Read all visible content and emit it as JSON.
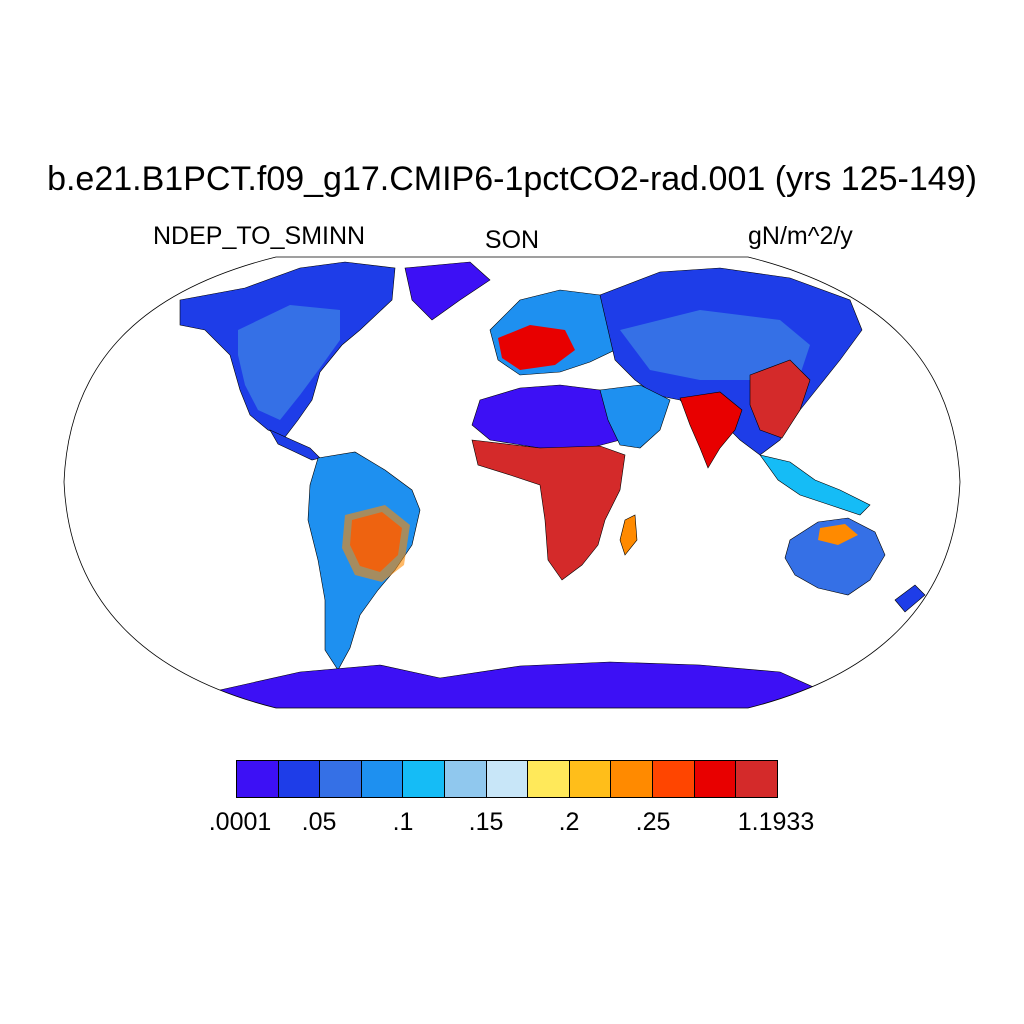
{
  "title": "b.e21.B1PCT.f09_g17.CMIP6-1pctCO2-rad.001 (yrs 125-149)",
  "left_label": "NDEP_TO_SMINN",
  "center_label": "SON",
  "right_label": "gN/m^2/y",
  "colorbar": {
    "colors": [
      "#3d10f5",
      "#1e3de8",
      "#3570e6",
      "#1e90f0",
      "#15bcf6",
      "#90c8ee",
      "#c8e6f8",
      "#ffe95a",
      "#ffbe1a",
      "#ff8a00",
      "#ff4500",
      "#e80000",
      "#d42a2a"
    ],
    "tick_labels": [
      ".0001",
      ".05",
      ".1",
      ".15",
      ".2",
      ".25",
      "1.1933"
    ]
  },
  "regions": [
    {
      "name": "North America",
      "level": 1
    },
    {
      "name": "South America",
      "level": 3
    },
    {
      "name": "South America core",
      "level": 12
    },
    {
      "name": "Europe",
      "level": 3
    },
    {
      "name": "Western Europe",
      "level": 11
    },
    {
      "name": "Asia",
      "level": 1
    },
    {
      "name": "India",
      "level": 11
    },
    {
      "name": "East China",
      "level": 12
    },
    {
      "name": "Sahara",
      "level": 0
    },
    {
      "name": "Sub-Saharan Africa",
      "level": 12
    },
    {
      "name": "Australia",
      "level": 2
    },
    {
      "name": "Antarctica",
      "level": 0
    }
  ]
}
